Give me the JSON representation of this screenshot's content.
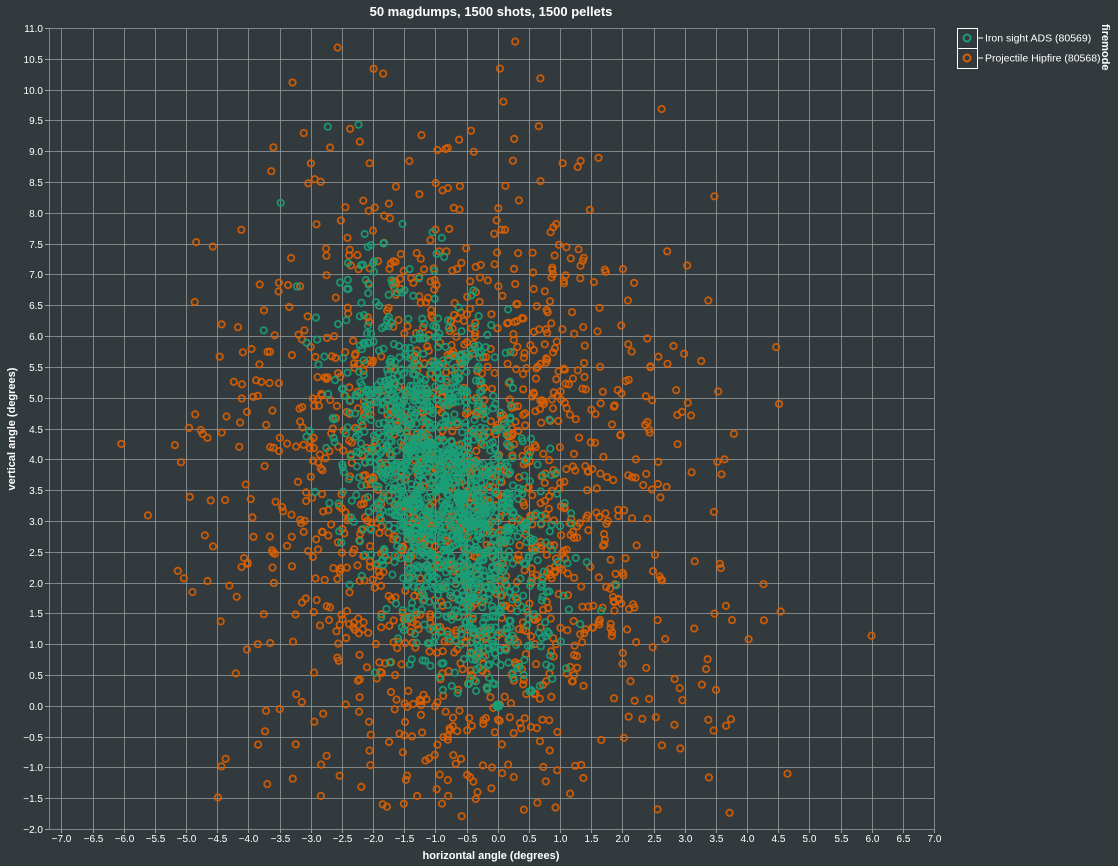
{
  "chart_data": {
    "type": "scatter",
    "title": "50 magdumps, 1500 shots, 1500 pellets",
    "xlabel": "horizontal angle (degrees)",
    "ylabel": "vertical angle (degrees)",
    "xlim": [
      -7.2,
      7.0
    ],
    "ylim": [
      -2.0,
      11.0
    ],
    "x_ticks": [
      -7.0,
      -6.5,
      -6.0,
      -5.5,
      -5.0,
      -4.5,
      -4.0,
      -3.5,
      -3.0,
      -2.5,
      -2.0,
      -1.5,
      -1.0,
      -0.5,
      0.0,
      0.5,
      1.0,
      1.5,
      2.0,
      2.5,
      3.0,
      3.5,
      4.0,
      4.5,
      5.0,
      5.5,
      6.0,
      6.5,
      7.0
    ],
    "x_tick_labels": [
      "−7.0",
      "−6.5",
      "−6.0",
      "−5.5",
      "−5.0",
      "−4.5",
      "−4.0",
      "−3.5",
      "−3.0",
      "−2.5",
      "−2.0",
      "−1.5",
      "−1.0",
      "−0.5",
      "0.0",
      "0.5",
      "1.0",
      "1.5",
      "2.0",
      "2.5",
      "3.0",
      "3.5",
      "4.0",
      "4.5",
      "5.0",
      "5.5",
      "6.0",
      "6.5",
      "7.0"
    ],
    "y_ticks": [
      -2.0,
      -1.5,
      -1.0,
      -0.5,
      0.0,
      0.5,
      1.0,
      1.5,
      2.0,
      2.5,
      3.0,
      3.5,
      4.0,
      4.5,
      5.0,
      5.5,
      6.0,
      6.5,
      7.0,
      7.5,
      8.0,
      8.5,
      9.0,
      9.5,
      10.0,
      10.5,
      11.0
    ],
    "y_tick_labels": [
      "−2.0",
      "−1.5",
      "−1.0",
      "−0.5",
      "0.0",
      "0.5",
      "1.0",
      "1.5",
      "2.0",
      "2.5",
      "3.0",
      "3.5",
      "4.0",
      "4.5",
      "5.0",
      "5.5",
      "6.0",
      "6.5",
      "7.0",
      "7.5",
      "8.0",
      "8.5",
      "9.0",
      "9.5",
      "10.0",
      "10.5",
      "11.0"
    ],
    "grid": true,
    "legend": {
      "title": "firemode",
      "position": "top-right"
    },
    "series": [
      {
        "name": "Iron sight ADS (80569)",
        "color": "#1b9e77",
        "marker": "open-circle",
        "distribution": {
          "count": 1500,
          "mean_x": -0.85,
          "sd_x": 0.72,
          "mean_y": 3.5,
          "sd_y": 1.55,
          "trend_x_per_y": -0.2
        }
      },
      {
        "name": "Projectile Hipfire (80568)",
        "color": "#d95f02",
        "marker": "open-circle",
        "distribution": {
          "count": 1500,
          "mean_x": -0.65,
          "sd_x": 1.8,
          "mean_y": 3.4,
          "sd_y": 2.55,
          "trend_x_per_y": -0.05
        }
      }
    ],
    "highlighted_points": [
      {
        "series": "Iron sight ADS (80569)",
        "x": 0.0,
        "y": 0.0
      }
    ]
  }
}
